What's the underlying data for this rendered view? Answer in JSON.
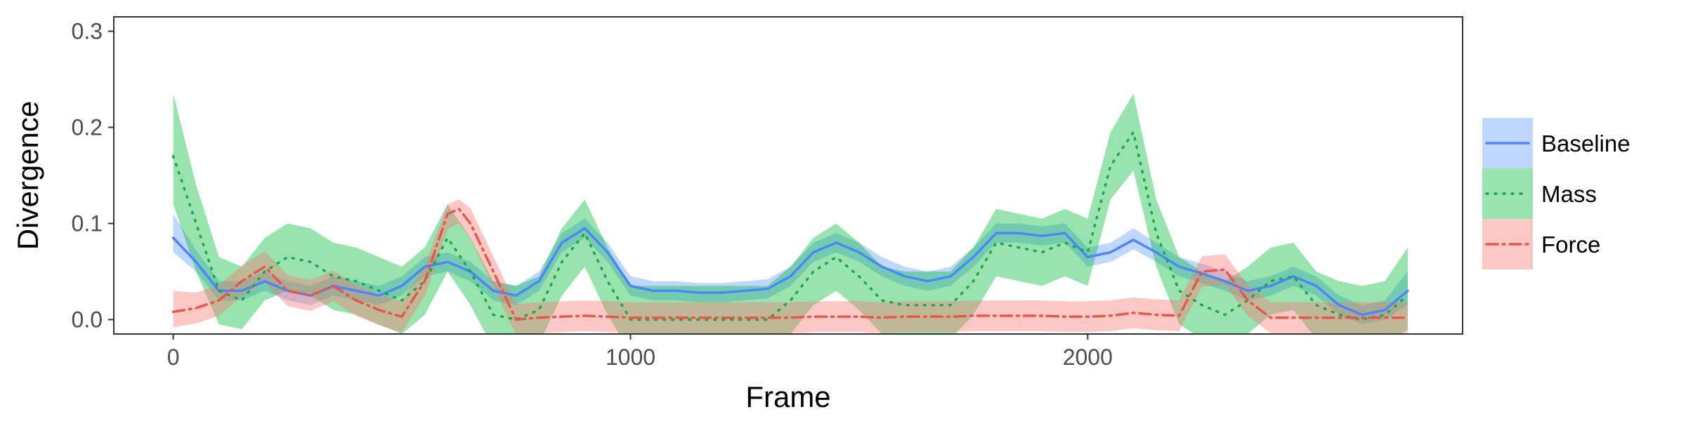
{
  "chart_data": {
    "type": "line",
    "title": "",
    "xlabel": "Frame",
    "ylabel": "Divergence",
    "xlim": [
      -130,
      2820
    ],
    "ylim": [
      -0.015,
      0.315
    ],
    "xticks": [
      0,
      1000,
      2000
    ],
    "xtick_labels": [
      "0",
      "1000",
      "2000"
    ],
    "yticks": [
      0.0,
      0.1,
      0.2,
      0.3
    ],
    "ytick_labels": [
      "0.0",
      "0.1",
      "0.2",
      "0.3"
    ],
    "grid": false,
    "legend_position": "right",
    "series": [
      {
        "name": "Baseline",
        "color": "#619CFF",
        "line_color": "#4F86F7",
        "dash": "solid",
        "x": [
          0,
          50,
          100,
          150,
          200,
          250,
          300,
          350,
          400,
          450,
          500,
          550,
          600,
          650,
          700,
          750,
          800,
          850,
          900,
          950,
          1000,
          1050,
          1100,
          1150,
          1200,
          1250,
          1300,
          1350,
          1400,
          1450,
          1500,
          1550,
          1600,
          1650,
          1700,
          1750,
          1800,
          1850,
          1900,
          1950,
          2000,
          2050,
          2100,
          2150,
          2200,
          2250,
          2300,
          2350,
          2400,
          2450,
          2500,
          2550,
          2600,
          2650,
          2700
        ],
        "y": [
          0.085,
          0.06,
          0.03,
          0.03,
          0.04,
          0.03,
          0.025,
          0.035,
          0.03,
          0.025,
          0.035,
          0.055,
          0.06,
          0.05,
          0.03,
          0.025,
          0.04,
          0.08,
          0.095,
          0.07,
          0.035,
          0.03,
          0.03,
          0.028,
          0.028,
          0.03,
          0.032,
          0.045,
          0.07,
          0.08,
          0.07,
          0.055,
          0.045,
          0.04,
          0.045,
          0.065,
          0.09,
          0.09,
          0.087,
          0.09,
          0.065,
          0.07,
          0.083,
          0.07,
          0.055,
          0.048,
          0.04,
          0.03,
          0.035,
          0.045,
          0.035,
          0.015,
          0.005,
          0.01,
          0.03
        ],
        "lower": [
          0.07,
          0.05,
          0.02,
          0.02,
          0.03,
          0.02,
          0.015,
          0.025,
          0.02,
          0.015,
          0.025,
          0.045,
          0.05,
          0.04,
          0.02,
          0.015,
          0.03,
          0.07,
          0.085,
          0.06,
          0.025,
          0.02,
          0.02,
          0.018,
          0.018,
          0.02,
          0.022,
          0.035,
          0.06,
          0.07,
          0.06,
          0.045,
          0.035,
          0.03,
          0.035,
          0.055,
          0.08,
          0.08,
          0.077,
          0.08,
          0.055,
          0.06,
          0.073,
          0.06,
          0.045,
          0.038,
          0.03,
          0.02,
          0.025,
          0.035,
          0.025,
          0.005,
          -0.005,
          0.0,
          0.015
        ],
        "upper": [
          0.11,
          0.072,
          0.04,
          0.04,
          0.05,
          0.04,
          0.035,
          0.045,
          0.04,
          0.035,
          0.045,
          0.065,
          0.07,
          0.06,
          0.04,
          0.035,
          0.05,
          0.09,
          0.105,
          0.08,
          0.045,
          0.04,
          0.04,
          0.038,
          0.038,
          0.04,
          0.042,
          0.055,
          0.08,
          0.09,
          0.08,
          0.065,
          0.055,
          0.05,
          0.055,
          0.075,
          0.1,
          0.1,
          0.097,
          0.1,
          0.075,
          0.08,
          0.095,
          0.08,
          0.065,
          0.058,
          0.05,
          0.04,
          0.045,
          0.055,
          0.045,
          0.025,
          0.015,
          0.02,
          0.05
        ]
      },
      {
        "name": "Mass",
        "color": "#00BA38",
        "line_color": "#1FA84A",
        "dash": "dotted",
        "x": [
          0,
          50,
          100,
          150,
          200,
          250,
          300,
          350,
          400,
          450,
          500,
          550,
          600,
          650,
          700,
          750,
          800,
          850,
          900,
          950,
          1000,
          1050,
          1100,
          1150,
          1200,
          1250,
          1300,
          1350,
          1400,
          1450,
          1500,
          1550,
          1600,
          1650,
          1700,
          1750,
          1800,
          1850,
          1900,
          1950,
          2000,
          2050,
          2100,
          2150,
          2200,
          2250,
          2300,
          2350,
          2400,
          2450,
          2500,
          2550,
          2600,
          2650,
          2700
        ],
        "y": [
          0.17,
          0.1,
          0.03,
          0.02,
          0.05,
          0.065,
          0.06,
          0.045,
          0.04,
          0.03,
          0.02,
          0.04,
          0.085,
          0.05,
          0.005,
          0.0,
          0.01,
          0.06,
          0.09,
          0.04,
          0.0,
          0.0,
          0.0,
          0.0,
          0.0,
          0.0,
          0.0,
          0.02,
          0.05,
          0.065,
          0.045,
          0.02,
          0.015,
          0.015,
          0.015,
          0.04,
          0.08,
          0.075,
          0.07,
          0.08,
          0.07,
          0.16,
          0.195,
          0.09,
          0.03,
          0.015,
          0.005,
          0.02,
          0.04,
          0.045,
          0.015,
          0.005,
          0.0,
          0.005,
          0.025
        ],
        "lower": [
          0.12,
          0.05,
          -0.005,
          -0.01,
          0.02,
          0.03,
          0.025,
          0.01,
          0.005,
          -0.005,
          -0.015,
          0.005,
          0.05,
          0.015,
          -0.03,
          -0.035,
          -0.025,
          0.025,
          0.055,
          0.005,
          -0.035,
          -0.035,
          -0.035,
          -0.035,
          -0.035,
          -0.035,
          -0.035,
          -0.015,
          0.015,
          0.03,
          0.01,
          -0.015,
          -0.02,
          -0.02,
          -0.02,
          0.005,
          0.045,
          0.04,
          0.035,
          0.045,
          0.035,
          0.125,
          0.155,
          0.055,
          -0.005,
          -0.02,
          -0.03,
          -0.015,
          0.005,
          0.01,
          -0.02,
          -0.03,
          -0.035,
          -0.03,
          -0.01
        ],
        "upper": [
          0.235,
          0.14,
          0.065,
          0.055,
          0.085,
          0.1,
          0.095,
          0.08,
          0.075,
          0.065,
          0.055,
          0.075,
          0.12,
          0.085,
          0.04,
          0.035,
          0.045,
          0.095,
          0.125,
          0.075,
          0.035,
          0.035,
          0.035,
          0.035,
          0.035,
          0.035,
          0.035,
          0.055,
          0.085,
          0.1,
          0.08,
          0.055,
          0.05,
          0.05,
          0.05,
          0.075,
          0.115,
          0.11,
          0.105,
          0.115,
          0.105,
          0.195,
          0.235,
          0.125,
          0.065,
          0.05,
          0.04,
          0.055,
          0.075,
          0.08,
          0.05,
          0.04,
          0.035,
          0.04,
          0.075
        ]
      },
      {
        "name": "Force",
        "color": "#F8766D",
        "line_color": "#E8574C",
        "dash": "dashdot",
        "x": [
          0,
          50,
          100,
          150,
          200,
          250,
          300,
          350,
          400,
          450,
          500,
          550,
          600,
          625,
          650,
          700,
          750,
          800,
          850,
          900,
          950,
          1000,
          1050,
          1100,
          1150,
          1200,
          1250,
          1300,
          1350,
          1400,
          1450,
          1500,
          1550,
          1600,
          1650,
          1700,
          1750,
          1800,
          1850,
          1900,
          1950,
          2000,
          2050,
          2100,
          2150,
          2200,
          2250,
          2300,
          2350,
          2400,
          2450,
          2500,
          2550,
          2600,
          2650,
          2700
        ],
        "y": [
          0.008,
          0.012,
          0.02,
          0.04,
          0.055,
          0.03,
          0.025,
          0.035,
          0.02,
          0.01,
          0.003,
          0.04,
          0.11,
          0.115,
          0.1,
          0.05,
          0.0,
          0.002,
          0.003,
          0.004,
          0.003,
          0.002,
          0.002,
          0.002,
          0.002,
          0.002,
          0.002,
          0.002,
          0.002,
          0.003,
          0.003,
          0.003,
          0.002,
          0.003,
          0.003,
          0.003,
          0.004,
          0.004,
          0.004,
          0.004,
          0.003,
          0.003,
          0.004,
          0.007,
          0.005,
          0.004,
          0.05,
          0.052,
          0.02,
          0.002,
          0.002,
          0.002,
          0.002,
          0.002,
          0.002,
          0.002
        ],
        "lower": [
          -0.008,
          -0.004,
          0.004,
          0.024,
          0.039,
          0.014,
          0.009,
          0.019,
          0.004,
          -0.006,
          -0.013,
          0.024,
          0.094,
          0.1,
          0.084,
          0.034,
          -0.016,
          -0.014,
          -0.013,
          -0.012,
          -0.013,
          -0.014,
          -0.014,
          -0.014,
          -0.014,
          -0.014,
          -0.014,
          -0.014,
          -0.014,
          -0.013,
          -0.013,
          -0.013,
          -0.014,
          -0.013,
          -0.013,
          -0.013,
          -0.012,
          -0.012,
          -0.012,
          -0.012,
          -0.013,
          -0.013,
          -0.012,
          -0.009,
          -0.011,
          -0.012,
          0.034,
          0.036,
          0.004,
          -0.014,
          -0.014,
          -0.014,
          -0.014,
          -0.014,
          -0.014,
          -0.014
        ],
        "upper": [
          0.03,
          0.028,
          0.036,
          0.056,
          0.071,
          0.046,
          0.041,
          0.051,
          0.036,
          0.026,
          0.019,
          0.056,
          0.12,
          0.125,
          0.116,
          0.066,
          0.016,
          0.018,
          0.019,
          0.02,
          0.019,
          0.018,
          0.018,
          0.018,
          0.018,
          0.018,
          0.018,
          0.018,
          0.018,
          0.019,
          0.019,
          0.019,
          0.018,
          0.019,
          0.019,
          0.019,
          0.02,
          0.02,
          0.02,
          0.02,
          0.019,
          0.019,
          0.02,
          0.023,
          0.021,
          0.02,
          0.066,
          0.068,
          0.036,
          0.018,
          0.018,
          0.018,
          0.018,
          0.018,
          0.018,
          0.018
        ]
      }
    ]
  }
}
